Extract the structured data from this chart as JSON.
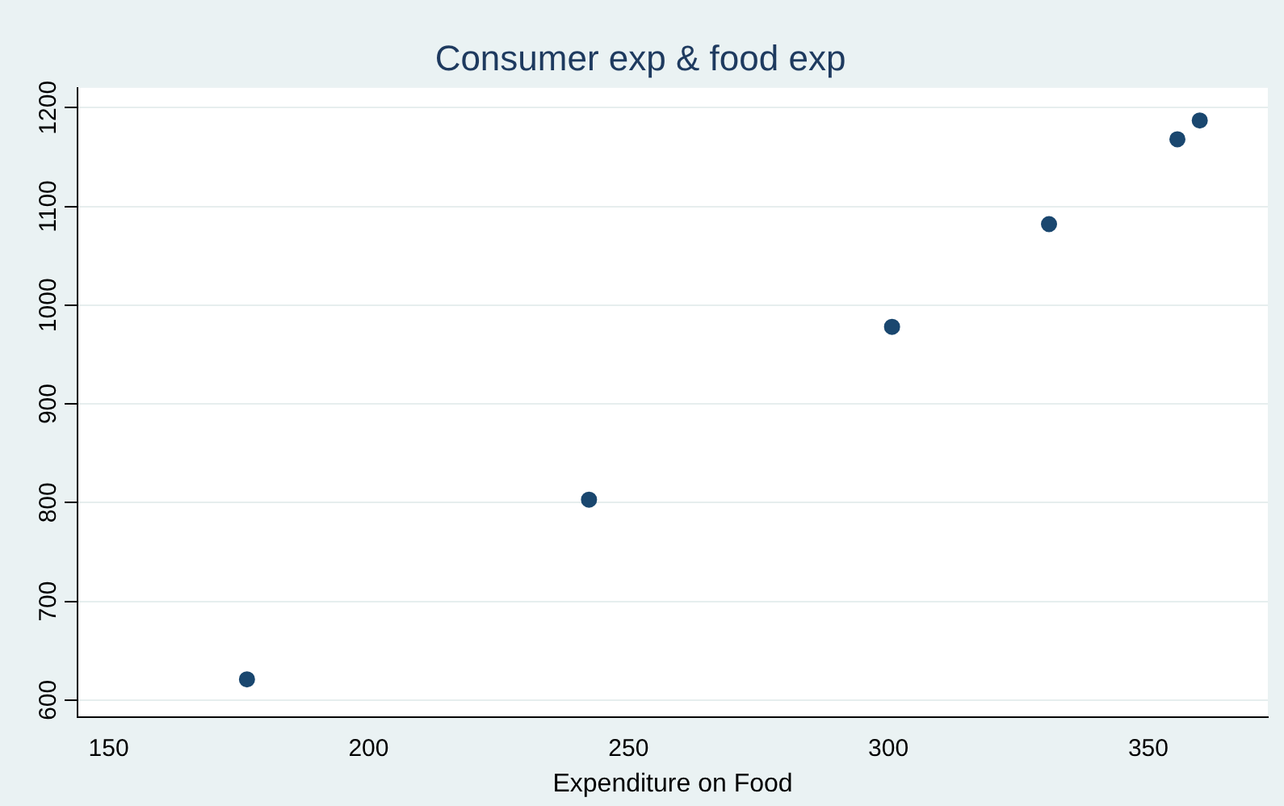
{
  "chart_data": {
    "type": "scatter",
    "title": "Consumer exp & food exp",
    "xlabel": "Expenditure on Food",
    "x": [
      176.6,
      242.4,
      300.7,
      330.9,
      355.6,
      359.9
    ],
    "series": [
      {
        "color": "#1a476f",
        "values": [
          621,
          803,
          978,
          1082,
          1168,
          1187
        ]
      }
    ],
    "xlim": [
      144,
      373
    ],
    "xticks": [
      150,
      200,
      250,
      300,
      350
    ],
    "ylim": [
      583,
      1220
    ],
    "yticks": [
      600,
      700,
      800,
      900,
      1000,
      1100,
      1200
    ],
    "grid": "y",
    "marker": "circle",
    "legend": false
  }
}
